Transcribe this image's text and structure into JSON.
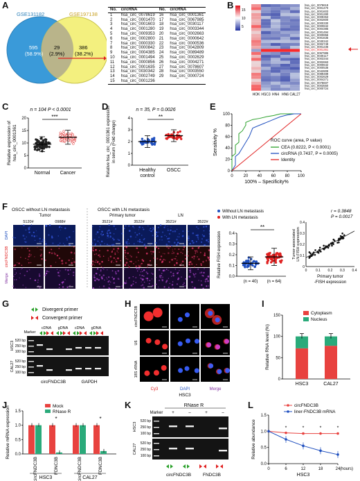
{
  "A": {
    "label": "A",
    "set1": "GSE131182",
    "set2": "GSE197138",
    "left_count": "595",
    "left_pct": "(58.9%)",
    "mid_count": "29",
    "mid_pct": "(2.9%)",
    "right_count": "386",
    "right_pct": "(38.2%)",
    "table_headers": [
      "No.",
      "circRNA",
      "No.",
      "circRNA"
    ],
    "left_rows": [
      [
        "1",
        "hsa_circ_0078619"
      ],
      [
        "2",
        "hsa_circ_0001470"
      ],
      [
        "3",
        "hsa_circ_0001603"
      ],
      [
        "4",
        "hsa_circ_0001280"
      ],
      [
        "5",
        "hsa_circ_0009353"
      ],
      [
        "6",
        "hsa_circ_0002800"
      ],
      [
        "7",
        "hsa_circ_0000330"
      ],
      [
        "8",
        "hsa_circ_0000842"
      ],
      [
        "9",
        "hsa_circ_0004385"
      ],
      [
        "10",
        "hsa_circ_0001494"
      ],
      [
        "11",
        "hsa_circ_0000856"
      ],
      [
        "12",
        "hsa_circ_0001635"
      ],
      [
        "13",
        "hsa_circ_0030342"
      ],
      [
        "14",
        "hsa_circ_0002749"
      ],
      [
        "15",
        "hsa_circ_0001236"
      ]
    ],
    "right_rows": [
      [
        "16",
        "hsa_circ_0001361"
      ],
      [
        "17",
        "hsa_circ_0067985"
      ],
      [
        "18",
        "hsa_circ_0030117"
      ],
      [
        "19",
        "hsa_circ_0003344"
      ],
      [
        "20",
        "hsa_circ_0002663"
      ],
      [
        "21",
        "hsa_circ_0000642"
      ],
      [
        "22",
        "hsa_circ_0000536"
      ],
      [
        "23",
        "hsa_circ_0042809"
      ],
      [
        "24",
        "hsa_circ_0089489"
      ],
      [
        "25",
        "hsa_circ_0002629"
      ],
      [
        "26",
        "hsa_circ_0004271"
      ],
      [
        "27",
        "hsa_circ_0078607"
      ],
      [
        "28",
        "hsa_circ_0003550"
      ],
      [
        "29",
        "hsa_circ_0000724"
      ]
    ]
  },
  "B": {
    "label": "B",
    "colorbar_ticks": [
      "15",
      "10",
      "5"
    ],
    "columns": [
      "HOK",
      "HSC3",
      "HN4",
      "HN6",
      "CAL27"
    ],
    "rows": [
      "hsa_circ_0078619",
      "hsa_circ_0001470",
      "hsa_circ_0001603",
      "hsa_circ_0001280",
      "hsa_circ_0009353",
      "hsa_circ_0002800",
      "hsa_circ_0000330",
      "hsa_circ_0000842",
      "hsa_circ_0004385",
      "hsa_circ_0001494",
      "hsa_circ_0000856",
      "hsa_circ_0001635",
      "hsa_circ_0030342",
      "hsa_circ_0002749",
      "hsa_circ_0001236",
      "hsa_circ_0001361",
      "hsa_circ_0067985",
      "hsa_circ_0030117",
      "hsa_circ_0003344",
      "hsa_circ_0002663",
      "hsa_circ_0000642",
      "hsa_circ_0000536",
      "hsa_circ_0042809",
      "hsa_circ_0089489",
      "hsa_circ_0002629",
      "hsa_circ_0004271",
      "hsa_circ_0078607",
      "hsa_circ_0003550",
      "hsa_circ_0000724"
    ],
    "highlight_row": "hsa_circ_0001361"
  },
  "C": {
    "label": "C",
    "stat": "n = 104 P < 0.0001",
    "sig": "***",
    "ylabel": "Relative expression of hsa_circ_0001361",
    "yticks": [
      "0",
      "5",
      "10",
      "15",
      "20"
    ],
    "categories": [
      "Normal",
      "Cancer"
    ]
  },
  "D": {
    "label": "D",
    "stat": "n = 35, P = 0.0026",
    "sig": "**",
    "ylabel": "Relative hsa_circ_0001361 expression in serum (Fold change)",
    "yticks": [
      "0",
      "1",
      "2",
      "3",
      "4"
    ],
    "categories": [
      "Healthy control",
      "OSCC"
    ]
  },
  "E": {
    "label": "E",
    "ylabel": "Sensitivity %",
    "xlabel": "100% – Specificity%",
    "ticks": [
      "0",
      "20",
      "40",
      "60",
      "80",
      "100"
    ],
    "legend_title": "ROC curve (area, P value)",
    "legend": [
      {
        "name": "CEA (0.8222, P < 0.0001)",
        "color": "#2aa02a"
      },
      {
        "name": "circRNA (0.7437, P = 0.0005)",
        "color": "#1f4fbf"
      },
      {
        "name": "Identity",
        "color": "#e02020"
      }
    ]
  },
  "F": {
    "label": "F",
    "group1": "OSCC  without LN metastasis",
    "group2": "OSCC  with LN metastasis",
    "sub_tumor": "Tumor",
    "sub_primary": "Primary tumor",
    "sub_ln": "LN",
    "samples": [
      "5120#",
      "0988#",
      "3521#",
      "3522#",
      "3521#",
      "3522#"
    ],
    "row_labels": [
      "DAPI",
      "circFNDC3B",
      "Merge"
    ],
    "legend": [
      "Without LN metastasis",
      "With LN metastasis"
    ],
    "dot_ylabel": "Relative FISH expression",
    "dot_yticks": [
      "0.0",
      "0.1",
      "0.2",
      "0.3",
      "0.4"
    ],
    "dot_n": [
      "(n = 40)",
      "(n = 64)"
    ],
    "sig": "**",
    "scatter_stat1": "r = 0.3848",
    "scatter_stat2": "P = 0.0017",
    "scatter_ylabel": "Tumor-associated LN-FISH expression",
    "scatter_xlabel": "Primary tumor -FISH expression",
    "scatter_ticks": [
      "0",
      "0.1",
      "0.2",
      "0.3",
      "0.4"
    ]
  },
  "G": {
    "label": "G",
    "legend_divergent": "Divergent primer",
    "legend_convergent": "Convergent primer",
    "lanes": [
      "Marker",
      "cDNA",
      "gDNA",
      "cDNA",
      "gDNA"
    ],
    "rows": [
      "HSC3",
      "CAL27"
    ],
    "sizes": [
      "520 bp",
      "250 bp",
      "100 bp"
    ],
    "groups": [
      "circFNDC3B",
      "GAPDH"
    ]
  },
  "H": {
    "label": "H",
    "rows": [
      "circFNDC3B",
      "U6",
      "18S rRNA"
    ],
    "cols": [
      "Cy3",
      "DAPI",
      "Merge"
    ],
    "cell": "HSC3"
  },
  "I": {
    "label": "I",
    "ylabel": "Relative RNA level (%)",
    "yticks": [
      "0",
      "50",
      "100",
      "150"
    ],
    "legend": [
      {
        "name": "Cytoplasm",
        "color": "#e8423f"
      },
      {
        "name": "Nucleus",
        "color": "#2aaa7a"
      }
    ],
    "categories": [
      "HSC3",
      "CAL27"
    ]
  },
  "J": {
    "label": "J",
    "ylabel": "Relative mRNA expression",
    "yticks": [
      "0.0",
      "0.5",
      "1.0",
      "1.5"
    ],
    "legend": [
      {
        "name": "Mock",
        "color": "#e8423f"
      },
      {
        "name": "RNase R",
        "color": "#2aaa7a"
      }
    ],
    "xlabels": [
      "circFNDC3B",
      "FDNC3B",
      "circFNDC3B",
      "FDNC3B"
    ],
    "groups": [
      "HSC3",
      "CAL27"
    ],
    "sig": [
      "*",
      "*"
    ]
  },
  "K": {
    "label": "K",
    "title": "RNase R",
    "lanes": [
      "Marker",
      "+",
      "–",
      "+",
      "–"
    ],
    "rows": [
      "HSC3",
      "CAL27"
    ],
    "sizes": [
      "520 bp",
      "250 bp",
      "100 bp"
    ],
    "groups": [
      "circFNDC3B",
      "FNDC3B"
    ],
    "cell_note": ""
  },
  "L": {
    "label": "L",
    "ylabel": "Relative abundance",
    "xlabel": "HSC3",
    "xunit": "(hours)",
    "yticks": [
      "0.0",
      "0.5",
      "1.0",
      "1.5"
    ],
    "xticks": [
      "0",
      "6",
      "12",
      "18",
      "24"
    ],
    "legend": [
      {
        "name": "circFNDC3B",
        "color": "#e8423f"
      },
      {
        "name": "liner-FNDC3B mRNA",
        "color": "#1f4fbf"
      }
    ],
    "sig": "*"
  },
  "chart_data": [
    {
      "type": "scatter",
      "title": "",
      "xlabel": "",
      "ylabel": "Relative expression of hsa_circ_0001361",
      "categories": [
        "Normal",
        "Cancer"
      ],
      "ylim": [
        0,
        20
      ],
      "summary": [
        {
          "name": "Normal",
          "mean": 9.5,
          "sd": 3.0
        },
        {
          "name": "Cancer",
          "mean": 12.3,
          "sd": 2.8
        }
      ]
    },
    {
      "type": "scatter",
      "title": "",
      "ylabel": "Relative hsa_circ_0001361 expression in serum (Fold change)",
      "categories": [
        "Healthy control",
        "OSCC"
      ],
      "ylim": [
        0,
        4
      ],
      "summary": [
        {
          "name": "Healthy control",
          "mean": 2.0,
          "sd": 0.5
        },
        {
          "name": "OSCC",
          "mean": 2.5,
          "sd": 0.5
        }
      ]
    },
    {
      "type": "line",
      "title": "",
      "xlabel": "100% – Specificity%",
      "ylabel": "Sensitivity %",
      "xlim": [
        0,
        100
      ],
      "ylim": [
        0,
        100
      ],
      "series": [
        {
          "name": "CEA (0.8222, P < 0.0001)",
          "x": [
            0,
            0,
            5,
            5,
            10,
            10,
            15,
            20,
            20,
            30,
            40,
            50,
            60,
            70,
            80,
            90,
            100
          ],
          "y": [
            0,
            25,
            30,
            45,
            50,
            65,
            70,
            80,
            85,
            90,
            92,
            95,
            97,
            100,
            100,
            100,
            100
          ]
        },
        {
          "name": "circRNA (0.7437, P = 0.0005)",
          "x": [
            0,
            5,
            5,
            10,
            15,
            20,
            25,
            30,
            40,
            50,
            60,
            70,
            80,
            90,
            100
          ],
          "y": [
            0,
            10,
            25,
            30,
            40,
            50,
            60,
            75,
            80,
            85,
            90,
            95,
            98,
            100,
            100
          ]
        },
        {
          "name": "Identity",
          "x": [
            0,
            100
          ],
          "y": [
            0,
            100
          ]
        }
      ]
    },
    {
      "type": "scatter",
      "title": "",
      "ylabel": "Relative FISH expression",
      "categories": [
        "Without LN metastasis",
        "With LN metastasis"
      ],
      "ylim": [
        0,
        0.4
      ],
      "summary": [
        {
          "name": "Without LN metastasis",
          "mean": 0.12,
          "sd": 0.06
        },
        {
          "name": "With LN metastasis",
          "mean": 0.18,
          "sd": 0.08
        }
      ]
    },
    {
      "type": "scatter",
      "title": "",
      "xlabel": "Primary tumor -FISH expression",
      "ylabel": "Tumor-associated LN-FISH expression",
      "xlim": [
        0,
        0.4
      ],
      "ylim": [
        0,
        0.4
      ],
      "fit": {
        "r": 0.3848,
        "p": 0.0017
      }
    },
    {
      "type": "bar",
      "title": "",
      "ylabel": "Relative RNA level (%)",
      "categories": [
        "HSC3",
        "CAL27"
      ],
      "ylim": [
        0,
        150
      ],
      "series": [
        {
          "name": "Cytoplasm",
          "values": [
            72,
            78
          ]
        },
        {
          "name": "Nucleus",
          "values": [
            28,
            22
          ]
        }
      ]
    },
    {
      "type": "bar",
      "title": "",
      "ylabel": "Relative mRNA expression",
      "categories": [
        "circFNDC3B",
        "FDNC3B",
        "circFNDC3B",
        "FDNC3B"
      ],
      "ylim": [
        0,
        1.5
      ],
      "series": [
        {
          "name": "Mock",
          "values": [
            1.0,
            1.0,
            1.0,
            1.0
          ]
        },
        {
          "name": "RNase R",
          "values": [
            1.0,
            0.05,
            1.0,
            0.1
          ]
        }
      ]
    },
    {
      "type": "line",
      "title": "",
      "xlabel": "HSC3",
      "ylabel": "Relative abundance",
      "x": [
        0,
        6,
        12,
        18,
        24
      ],
      "ylim": [
        0,
        1.5
      ],
      "series": [
        {
          "name": "circFNDC3B",
          "values": [
            1.0,
            0.95,
            0.93,
            0.93,
            0.93
          ]
        },
        {
          "name": "liner-FNDC3B mRNA",
          "values": [
            1.0,
            0.75,
            0.55,
            0.4,
            0.28
          ]
        }
      ]
    }
  ]
}
